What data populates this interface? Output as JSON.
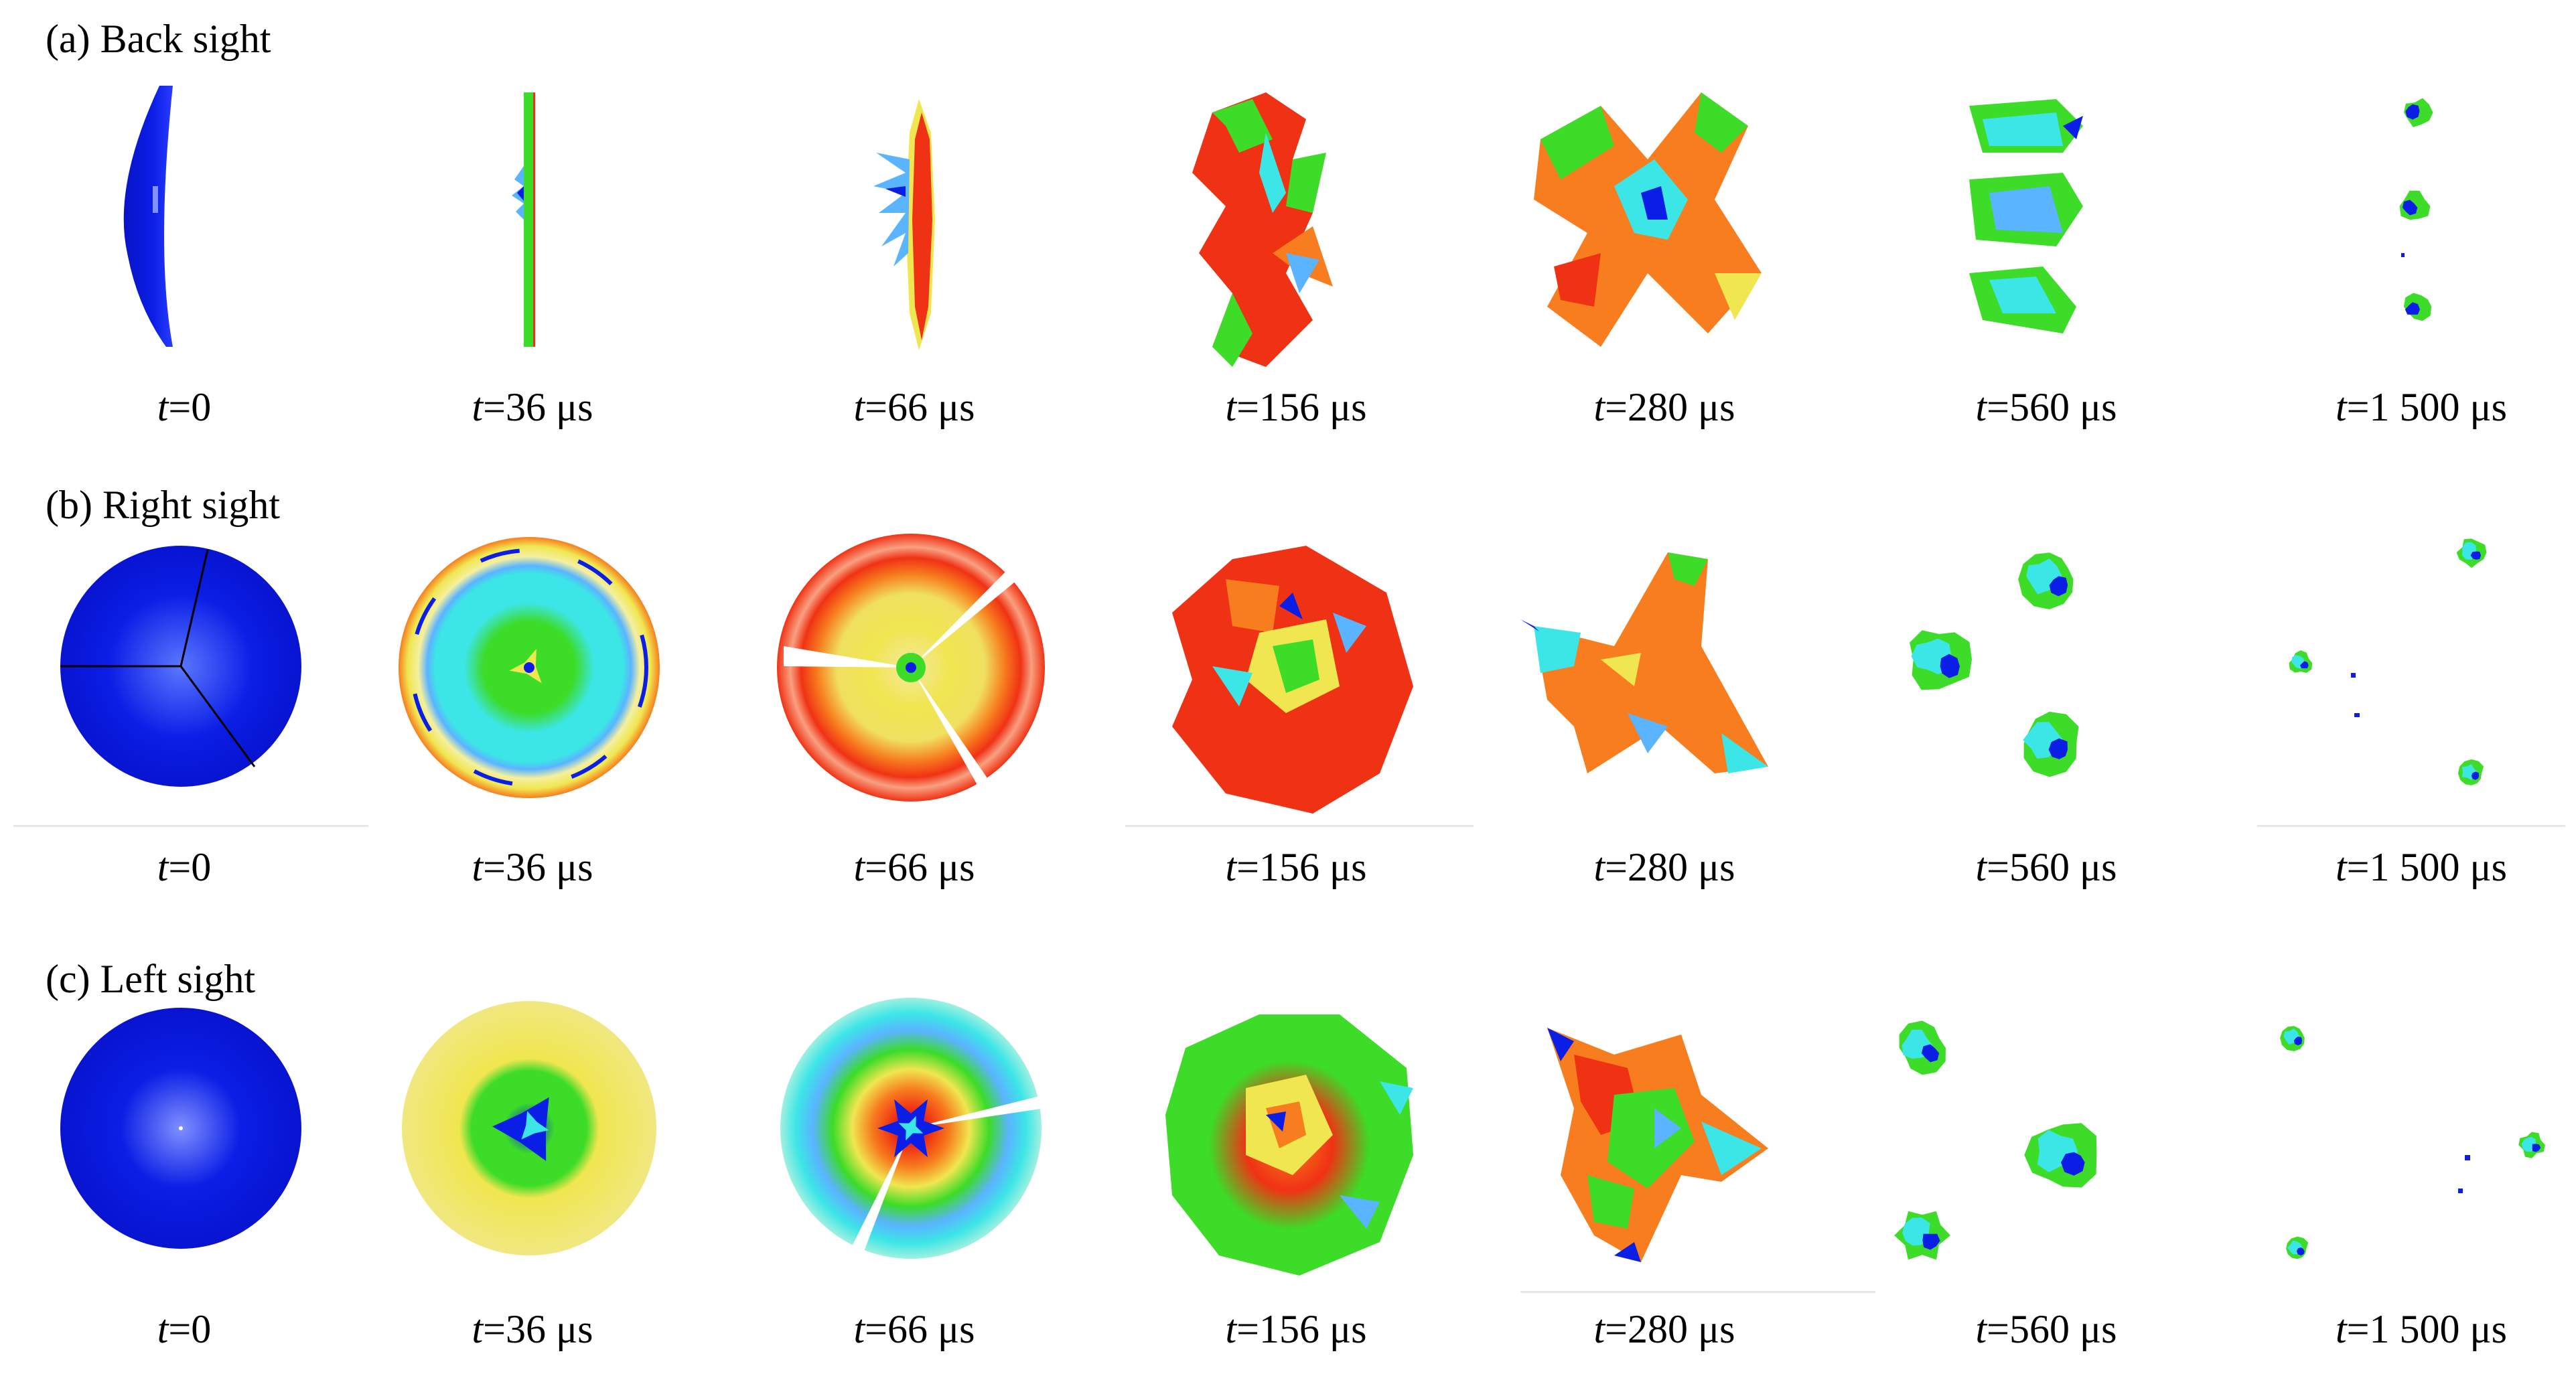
{
  "figure": {
    "rows": [
      {
        "key": "a",
        "title": "(a) Back sight",
        "frames": [
          {
            "t_var": "t",
            "t_value": "=0",
            "scene": "back-hemisphere"
          },
          {
            "t_var": "t",
            "t_value": "=36 μs",
            "scene": "back-thin-plate"
          },
          {
            "t_var": "t",
            "t_value": "=66 μs",
            "scene": "back-spiked-plate"
          },
          {
            "t_var": "t",
            "t_value": "=156 μs",
            "scene": "back-crumpled"
          },
          {
            "t_var": "t",
            "t_value": "=280 μs",
            "scene": "back-spread"
          },
          {
            "t_var": "t",
            "t_value": "=560 μs",
            "scene": "back-three-fragments"
          },
          {
            "t_var": "t",
            "t_value": "=1 500 μs",
            "scene": "back-small-fragments"
          }
        ]
      },
      {
        "key": "b",
        "title": "(b) Right sight",
        "frames": [
          {
            "t_var": "t",
            "t_value": "=0",
            "scene": "right-blue-disk"
          },
          {
            "t_var": "t",
            "t_value": "=36 μs",
            "scene": "right-ringed-disk"
          },
          {
            "t_var": "t",
            "t_value": "=66 μs",
            "scene": "right-hot-disk"
          },
          {
            "t_var": "t",
            "t_value": "=156 μs",
            "scene": "right-petals"
          },
          {
            "t_var": "t",
            "t_value": "=280 μs",
            "scene": "right-tri-star"
          },
          {
            "t_var": "t",
            "t_value": "=560 μs",
            "scene": "right-three-fragments"
          },
          {
            "t_var": "t",
            "t_value": "=1 500 μs",
            "scene": "right-small-fragments"
          }
        ]
      },
      {
        "key": "c",
        "title": "(c) Left sight",
        "frames": [
          {
            "t_var": "t",
            "t_value": "=0",
            "scene": "left-blue-disk"
          },
          {
            "t_var": "t",
            "t_value": "=36 μs",
            "scene": "left-yellow-disk"
          },
          {
            "t_var": "t",
            "t_value": "=66 μs",
            "scene": "left-cyan-disk"
          },
          {
            "t_var": "t",
            "t_value": "=156 μs",
            "scene": "left-green-petals"
          },
          {
            "t_var": "t",
            "t_value": "=280 μs",
            "scene": "left-tri-star"
          },
          {
            "t_var": "t",
            "t_value": "=560 μs",
            "scene": "left-three-fragments"
          },
          {
            "t_var": "t",
            "t_value": "=1 500 μs",
            "scene": "left-small-fragments"
          }
        ]
      }
    ],
    "colors": {
      "blue": "#0a1ee6",
      "red": "#f03214",
      "orange": "#f77d1e",
      "yellow": "#f0e650",
      "green": "#3cdc28",
      "cyan": "#3ce6e6",
      "light_blue": "#5ab4ff",
      "pale_yellow": "#f5f0a0"
    }
  }
}
